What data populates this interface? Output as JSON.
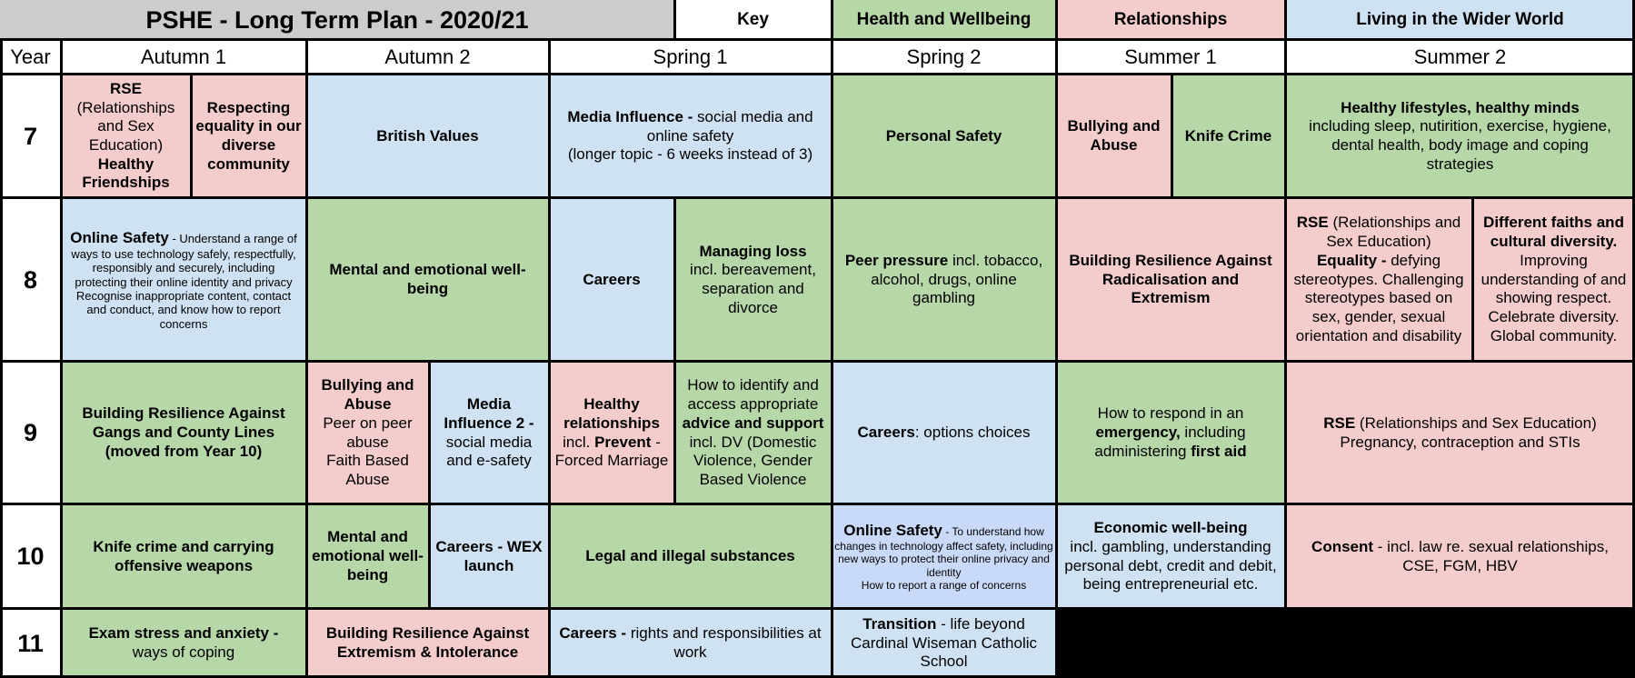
{
  "title": "PSHE - Long Term Plan - 2020/21",
  "key": {
    "label": "Key",
    "items": [
      "Health and Wellbeing",
      "Relationships",
      "Living in the Wider World"
    ]
  },
  "header": {
    "year": "Year",
    "terms": [
      "Autumn 1",
      "Autumn 2",
      "Spring 1",
      "Spring 2",
      "Summer 1",
      "Summer 2"
    ]
  },
  "years": [
    "7",
    "8",
    "9",
    "10",
    "11"
  ],
  "topics": {
    "y7_a1a": {
      "lines": [
        "RSE",
        "(Relationships",
        "and Sex",
        "Education)",
        "Healthy",
        "Friendships"
      ]
    },
    "y7_a1b": {
      "text": "Respecting equality in our diverse community"
    },
    "y7_a2": {
      "text": "British Values"
    },
    "y7_s1": {
      "bold": "Media Influence -",
      "rest": " social media and online safety",
      "line2": "(longer topic - 6 weeks instead of 3)"
    },
    "y7_s2": {
      "text": "Personal Safety"
    },
    "y7_su1a": {
      "text": "Bullying and Abuse"
    },
    "y7_su1b": {
      "text": "Knife Crime"
    },
    "y7_su2": {
      "bold": "Healthy lifestyles, healthy minds",
      "rest": "including sleep, nutirition, exercise, hygiene, dental health, body image and coping strategies"
    },
    "y8_a1": {
      "bold": "Online Safety",
      "rest": " - Understand a range of ways to use technology safely, respectfully, responsibly and securely, including protecting their online identity and privacy",
      "line2": "Recognise inappropriate content, contact and conduct, and know how to report concerns"
    },
    "y8_a2": {
      "text": "Mental and emotional well-being"
    },
    "y8_s1a": {
      "text": "Careers"
    },
    "y8_s1b": {
      "bold": "Managing loss",
      "rest": "incl. bereavement, separation and divorce"
    },
    "y8_s2": {
      "bold": "Peer pressure",
      "rest": " incl. tobacco, alcohol, drugs, online gambling"
    },
    "y8_su1": {
      "text": "Building Resilience Against Radicalisation and Extremism"
    },
    "y8_su2a": {
      "bold1": "RSE",
      "rest1": " (Relationships and Sex Education)",
      "bold2": "Equality -",
      "rest2": " defying stereotypes. Challenging stereotypes based on sex, gender, sexual orientation and disability"
    },
    "y8_su2b": {
      "bold": "Different faiths and cultural diversity.",
      "rest": " Improving understanding of and showing respect. Celebrate diversity. Global community."
    },
    "y9_a1": {
      "text": "Building Resilience Against Gangs and County Lines (moved from Year 10)"
    },
    "y9_a2a": {
      "bold": "Bullying and Abuse",
      "line2": "Peer on peer abuse",
      "line3": "Faith Based Abuse"
    },
    "y9_a2b": {
      "bold": "Media Influence 2 -",
      "rest": " social media and e-safety"
    },
    "y9_s1a": {
      "bold": "Healthy relationships",
      "rest": "incl. ",
      "bold2": "Prevent",
      "rest2": " - Forced Marriage"
    },
    "y9_s1b": {
      "pre": "How to identify and access appropriate ",
      "bold": "advice and support",
      "rest": " incl. DV (Domestic Violence,  Gender Based Violence"
    },
    "y9_s2": {
      "bold": "Careers",
      "rest": ": options choices"
    },
    "y9_su1": {
      "pre": "How to respond in an ",
      "bold": "emergency,",
      "rest": " including administering ",
      "bold2": "first aid"
    },
    "y9_su2": {
      "bold": "RSE",
      "rest": " (Relationships and Sex Education)",
      "line2": "Pregnancy, contraception and STIs"
    },
    "y10_a1": {
      "text": "Knife crime and carrying offensive weapons"
    },
    "y10_a2a": {
      "text": "Mental and emotional well-being"
    },
    "y10_a2b": {
      "text": "Careers - WEX launch"
    },
    "y10_s1": {
      "text": "Legal and illegal substances"
    },
    "y10_s2": {
      "bold": "Online Safety",
      "rest": " - To understand how changes in technology affect safety, including new ways to protect their online privacy and identity",
      "line2": "How to report a range of concerns"
    },
    "y10_su1": {
      "bold": "Economic well-being",
      "rest": "incl. gambling, understanding personal debt, credit and debit, being entrepreneurial etc."
    },
    "y10_su2": {
      "bold": "Consent",
      "rest": " - incl. law re. sexual relationships, CSE, FGM, HBV"
    },
    "y11_a1": {
      "bold": "Exam stress and anxiety -",
      "rest": " ways of coping"
    },
    "y11_a2": {
      "text": "Building Resilience Against Extremism & Intolerance"
    },
    "y11_s1": {
      "bold": "Careers -",
      "rest": " rights and responsibilities at work"
    },
    "y11_s2": {
      "bold": "Transition",
      "rest": " - life beyond Cardinal Wiseman Catholic School"
    }
  },
  "colors": {
    "health": "#b6d7a8",
    "relationships": "#f4cccc",
    "wider_world": "#cfe2f3",
    "title_bg": "#cccccc",
    "empty": "#000000"
  }
}
